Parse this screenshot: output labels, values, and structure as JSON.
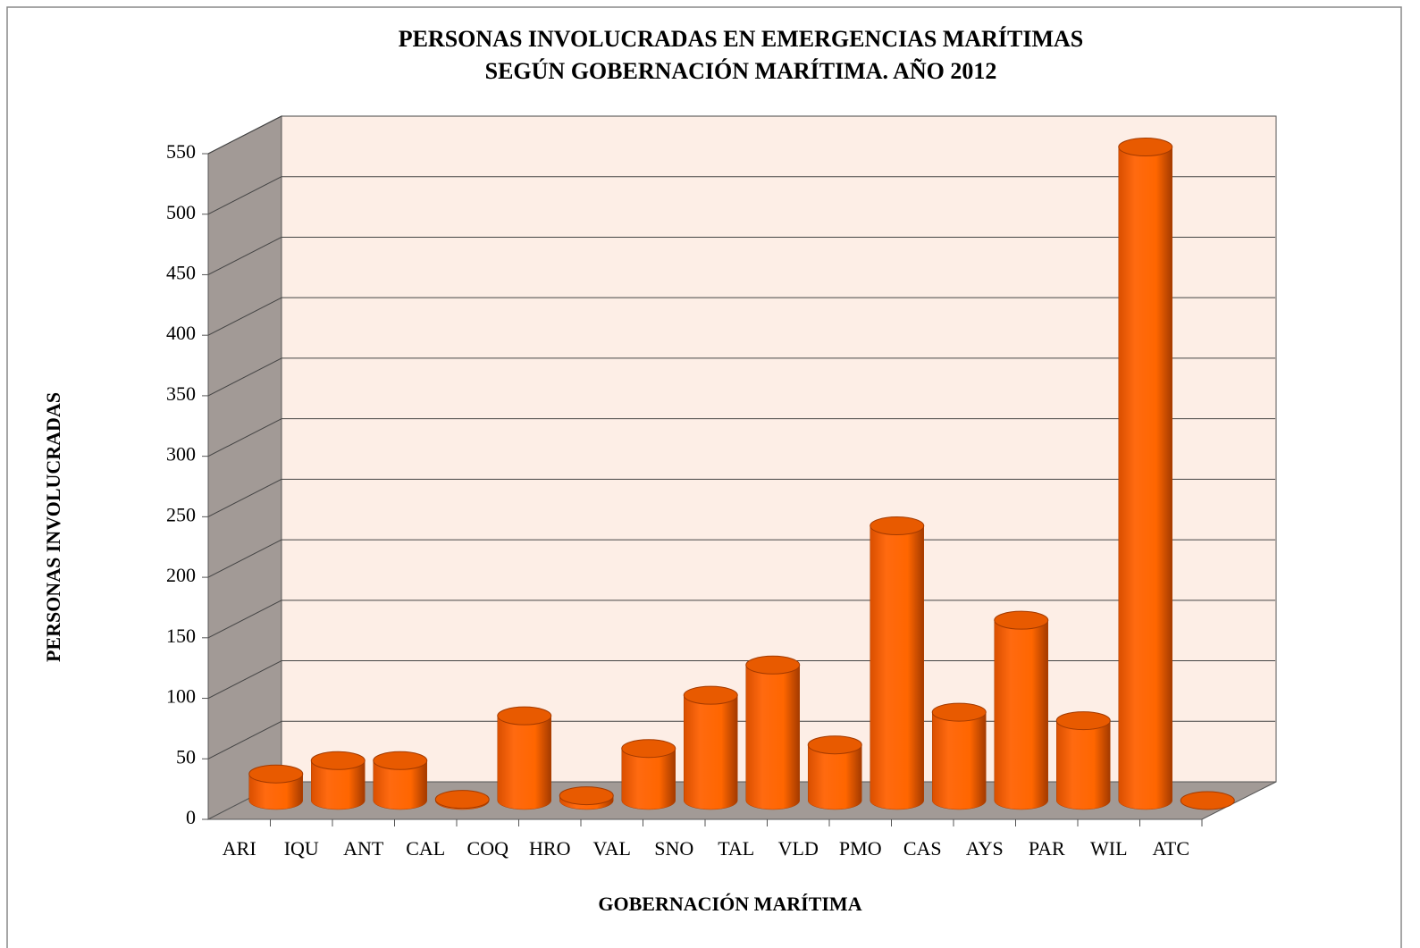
{
  "chart_data": {
    "type": "bar3d",
    "title": [
      "PERSONAS INVOLUCRADAS EN EMERGENCIAS MARÍTIMAS",
      "SEGÚN GOBERNACIÓN MARÍTIMA. AÑO 2012"
    ],
    "xlabel": "GOBERNACIÓN MARÍTIMA",
    "ylabel": "PERSONAS INVOLUCRADAS",
    "categories": [
      "ARI",
      "IQU",
      "ANT",
      "CAL",
      "COQ",
      "HRO",
      "VAL",
      "SNO",
      "TAL",
      "VLD",
      "PMO",
      "CAS",
      "AYS",
      "PAR",
      "WIL",
      "ATC"
    ],
    "values": [
      22,
      33,
      33,
      1,
      70,
      4,
      43,
      87,
      112,
      46,
      227,
      73,
      149,
      66,
      540,
      0
    ],
    "color": "#ff6600",
    "ylim": [
      0,
      550
    ],
    "yticks": [
      0,
      50,
      100,
      150,
      200,
      250,
      300,
      350,
      400,
      450,
      500,
      550
    ],
    "grid": true
  }
}
